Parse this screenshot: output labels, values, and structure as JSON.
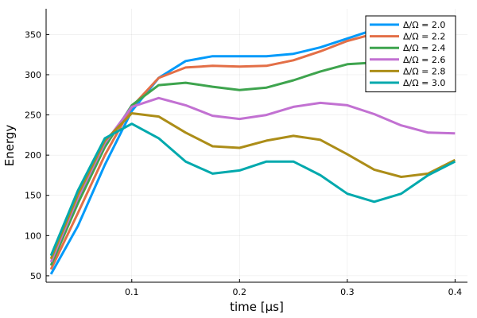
{
  "chart_data": {
    "type": "line",
    "xlabel": "time [μs]",
    "ylabel": "Energy",
    "xlim": [
      0.0205,
      0.4115
    ],
    "ylim": [
      42,
      382
    ],
    "grid": true,
    "legend_position": "top-right",
    "x_ticks": [
      {
        "value": 0.1,
        "label": "0.1"
      },
      {
        "value": 0.2,
        "label": "0.2"
      },
      {
        "value": 0.3,
        "label": "0.3"
      },
      {
        "value": 0.4,
        "label": "0.4"
      }
    ],
    "y_ticks": [
      {
        "value": 50,
        "label": "50"
      },
      {
        "value": 100,
        "label": "100"
      },
      {
        "value": 150,
        "label": "150"
      },
      {
        "value": 200,
        "label": "200"
      },
      {
        "value": 250,
        "label": "250"
      },
      {
        "value": 300,
        "label": "300"
      },
      {
        "value": 350,
        "label": "350"
      }
    ],
    "x": [
      0.025,
      0.05,
      0.075,
      0.1,
      0.125,
      0.15,
      0.175,
      0.2,
      0.225,
      0.25,
      0.275,
      0.3,
      0.325,
      0.35,
      0.375,
      0.4
    ],
    "series": [
      {
        "name": "Δ/Ω = 2.0",
        "color": "#009AFA",
        "values": [
          52,
          112,
          188,
          255,
          296,
          317,
          323,
          323,
          323,
          326,
          334,
          345,
          356,
          364,
          368,
          372
        ]
      },
      {
        "name": "Δ/Ω = 2.2",
        "color": "#E36F47",
        "values": [
          58,
          128,
          200,
          260,
          296,
          309,
          311,
          310,
          311,
          318,
          329,
          342,
          351,
          356,
          358,
          360
        ]
      },
      {
        "name": "Δ/Ω = 2.4",
        "color": "#3EA44E",
        "values": [
          63,
          140,
          210,
          262,
          287,
          290,
          285,
          281,
          284,
          293,
          304,
          313,
          315,
          313,
          310,
          305
        ]
      },
      {
        "name": "Δ/Ω = 2.6",
        "color": "#C271D2",
        "values": [
          67,
          147,
          215,
          260,
          271,
          262,
          249,
          245,
          250,
          260,
          265,
          262,
          251,
          237,
          228,
          227
        ]
      },
      {
        "name": "Δ/Ω = 2.8",
        "color": "#AC8D18",
        "values": [
          71,
          151,
          218,
          252,
          248,
          228,
          211,
          209,
          218,
          224,
          219,
          201,
          182,
          173,
          177,
          194
        ]
      },
      {
        "name": "Δ/Ω = 3.0",
        "color": "#00A9AD",
        "values": [
          75,
          156,
          221,
          239,
          221,
          192,
          177,
          181,
          192,
          192,
          175,
          152,
          142,
          152,
          175,
          192
        ]
      }
    ]
  }
}
